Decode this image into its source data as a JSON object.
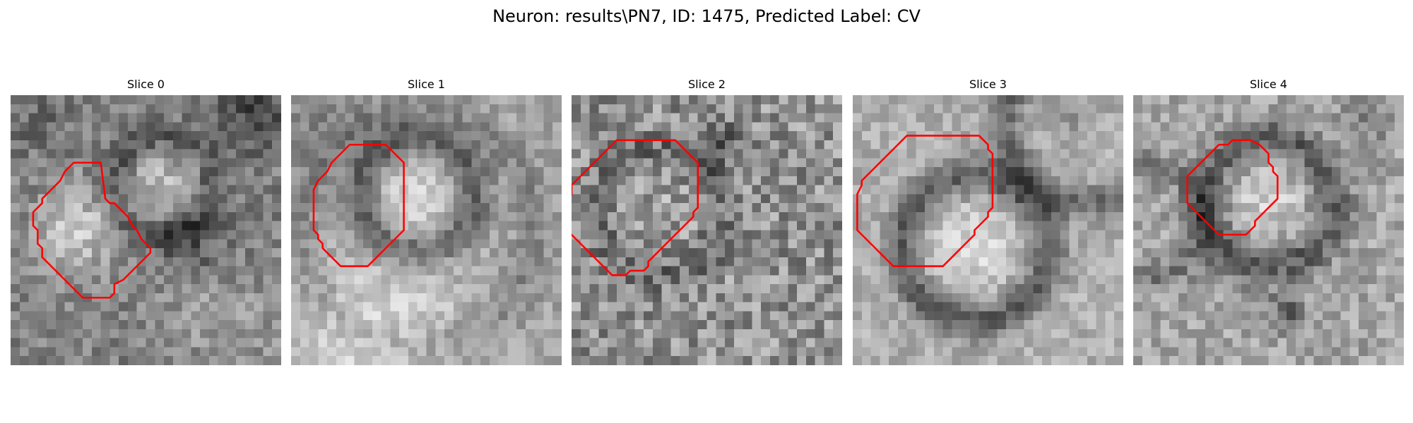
{
  "figure": {
    "title": "Neuron: results\\PN7, ID: 1475, Predicted Label: CV"
  },
  "colors": {
    "contour": "#ff0000",
    "background": "#ffffff"
  },
  "panels": [
    {
      "title": "Slice 0",
      "image": "grayscale-micrograph-patch",
      "contour": [
        [
          10.5,
          11.5
        ],
        [
          11.0,
          12.0
        ],
        [
          11.5,
          12.0
        ],
        [
          12.0,
          12.5
        ],
        [
          12.5,
          13.0
        ],
        [
          13.0,
          13.5
        ],
        [
          13.5,
          14.5
        ],
        [
          14.0,
          15.0
        ],
        [
          14.5,
          16.0
        ],
        [
          15.0,
          16.5
        ],
        [
          15.5,
          17.0
        ],
        [
          15.5,
          17.5
        ],
        [
          15.0,
          18.0
        ],
        [
          14.5,
          18.5
        ],
        [
          14.0,
          19.0
        ],
        [
          13.5,
          19.5
        ],
        [
          13.0,
          20.0
        ],
        [
          12.5,
          20.5
        ],
        [
          11.5,
          21.0
        ],
        [
          11.5,
          22.0
        ],
        [
          11.0,
          22.5
        ],
        [
          8.0,
          22.5
        ],
        [
          7.5,
          22.0
        ],
        [
          7.0,
          21.5
        ],
        [
          6.5,
          21.0
        ],
        [
          6.0,
          20.5
        ],
        [
          5.5,
          20.0
        ],
        [
          5.0,
          19.5
        ],
        [
          4.5,
          19.0
        ],
        [
          4.0,
          18.5
        ],
        [
          3.5,
          18.0
        ],
        [
          3.5,
          17.0
        ],
        [
          3.0,
          16.5
        ],
        [
          3.0,
          15.0
        ],
        [
          2.5,
          14.5
        ],
        [
          2.5,
          13.0
        ],
        [
          3.0,
          12.5
        ],
        [
          3.5,
          12.0
        ],
        [
          3.5,
          11.5
        ],
        [
          4.0,
          11.0
        ],
        [
          4.5,
          10.5
        ],
        [
          5.0,
          10.0
        ],
        [
          5.5,
          9.5
        ],
        [
          6.0,
          8.5
        ],
        [
          6.5,
          8.0
        ],
        [
          7.0,
          7.5
        ],
        [
          10.0,
          7.5
        ]
      ]
    },
    {
      "title": "Slice 1",
      "image": "grayscale-micrograph-patch",
      "contour": [
        [
          10.5,
          5.5
        ],
        [
          11.0,
          6.0
        ],
        [
          11.5,
          6.5
        ],
        [
          12.0,
          7.0
        ],
        [
          12.5,
          7.5
        ],
        [
          12.5,
          10.5
        ],
        [
          12.5,
          15.0
        ],
        [
          12.0,
          15.5
        ],
        [
          11.5,
          16.0
        ],
        [
          11.0,
          16.5
        ],
        [
          10.5,
          17.0
        ],
        [
          10.0,
          17.5
        ],
        [
          9.5,
          18.0
        ],
        [
          9.0,
          18.5
        ],
        [
          8.5,
          19.0
        ],
        [
          5.5,
          19.0
        ],
        [
          5.0,
          18.5
        ],
        [
          4.5,
          18.0
        ],
        [
          4.0,
          17.5
        ],
        [
          3.5,
          17.0
        ],
        [
          3.5,
          16.5
        ],
        [
          3.0,
          16.0
        ],
        [
          3.0,
          15.5
        ],
        [
          2.5,
          15.0
        ],
        [
          2.5,
          10.5
        ],
        [
          3.0,
          9.5
        ],
        [
          3.5,
          9.0
        ],
        [
          4.0,
          8.5
        ],
        [
          4.5,
          7.5
        ],
        [
          5.0,
          7.0
        ],
        [
          5.5,
          6.5
        ],
        [
          6.0,
          6.0
        ],
        [
          6.5,
          5.5
        ]
      ]
    },
    {
      "title": "Slice 2",
      "image": "grayscale-micrograph-patch",
      "contour": [
        [
          11.5,
          5.0
        ],
        [
          12.0,
          5.5
        ],
        [
          12.5,
          6.0
        ],
        [
          13.0,
          6.5
        ],
        [
          13.5,
          7.0
        ],
        [
          14.0,
          7.5
        ],
        [
          14.0,
          11.0
        ],
        [
          14.0,
          12.5
        ],
        [
          13.5,
          13.0
        ],
        [
          13.5,
          13.5
        ],
        [
          13.0,
          14.0
        ],
        [
          12.5,
          14.5
        ],
        [
          12.0,
          15.0
        ],
        [
          11.5,
          15.5
        ],
        [
          11.0,
          16.0
        ],
        [
          10.5,
          16.5
        ],
        [
          10.0,
          17.0
        ],
        [
          9.5,
          17.5
        ],
        [
          9.0,
          18.0
        ],
        [
          8.5,
          18.5
        ],
        [
          8.5,
          19.0
        ],
        [
          8.0,
          19.5
        ],
        [
          6.5,
          19.5
        ],
        [
          6.0,
          20.0
        ],
        [
          4.5,
          20.0
        ],
        [
          4.0,
          19.5
        ],
        [
          3.5,
          19.0
        ],
        [
          3.0,
          18.5
        ],
        [
          2.5,
          18.0
        ],
        [
          2.0,
          17.5
        ],
        [
          1.5,
          17.0
        ],
        [
          1.0,
          16.5
        ],
        [
          0.5,
          16.0
        ],
        [
          0.0,
          15.5
        ],
        [
          -0.5,
          15.0
        ],
        [
          -0.5,
          13.0
        ],
        [
          -0.5,
          12.0
        ],
        [
          0.0,
          11.0
        ],
        [
          0.0,
          10.0
        ],
        [
          0.5,
          9.5
        ],
        [
          1.0,
          9.0
        ],
        [
          1.5,
          8.5
        ],
        [
          2.0,
          8.0
        ],
        [
          2.5,
          7.5
        ],
        [
          3.0,
          7.0
        ],
        [
          3.5,
          6.5
        ],
        [
          4.0,
          6.0
        ],
        [
          4.5,
          5.5
        ],
        [
          5.0,
          5.0
        ]
      ]
    },
    {
      "title": "Slice 3",
      "image": "grayscale-micrograph-patch",
      "contour": [
        [
          14.0,
          4.5
        ],
        [
          14.5,
          5.0
        ],
        [
          15.0,
          5.5
        ],
        [
          15.0,
          6.0
        ],
        [
          15.5,
          6.5
        ],
        [
          15.5,
          8.5
        ],
        [
          15.5,
          11.0
        ],
        [
          15.5,
          12.5
        ],
        [
          15.0,
          13.0
        ],
        [
          15.0,
          13.5
        ],
        [
          14.5,
          14.0
        ],
        [
          14.0,
          14.5
        ],
        [
          13.5,
          15.0
        ],
        [
          13.5,
          15.5
        ],
        [
          13.0,
          16.0
        ],
        [
          12.5,
          16.5
        ],
        [
          12.0,
          17.0
        ],
        [
          11.5,
          17.5
        ],
        [
          11.0,
          18.0
        ],
        [
          10.5,
          18.5
        ],
        [
          10.0,
          19.0
        ],
        [
          4.5,
          19.0
        ],
        [
          4.0,
          18.5
        ],
        [
          3.5,
          18.0
        ],
        [
          3.0,
          17.5
        ],
        [
          2.5,
          17.0
        ],
        [
          2.0,
          16.5
        ],
        [
          1.5,
          16.0
        ],
        [
          1.0,
          15.5
        ],
        [
          0.5,
          15.0
        ],
        [
          0.5,
          13.0
        ],
        [
          0.5,
          11.0
        ],
        [
          1.0,
          10.0
        ],
        [
          1.0,
          9.5
        ],
        [
          1.5,
          9.0
        ],
        [
          2.0,
          8.5
        ],
        [
          2.5,
          8.0
        ],
        [
          3.0,
          7.5
        ],
        [
          3.5,
          7.0
        ],
        [
          4.0,
          6.5
        ],
        [
          4.5,
          6.0
        ],
        [
          5.0,
          5.5
        ],
        [
          5.5,
          5.0
        ],
        [
          6.0,
          4.5
        ],
        [
          8.0,
          4.5
        ]
      ]
    },
    {
      "title": "Slice 4",
      "image": "grayscale-micrograph-patch",
      "contour": [
        [
          14.0,
          5.5
        ],
        [
          14.5,
          6.0
        ],
        [
          15.0,
          6.5
        ],
        [
          15.0,
          7.5
        ],
        [
          15.5,
          8.0
        ],
        [
          15.5,
          8.5
        ],
        [
          16.0,
          9.0
        ],
        [
          16.0,
          11.0
        ],
        [
          16.0,
          11.5
        ],
        [
          15.5,
          12.0
        ],
        [
          15.0,
          12.5
        ],
        [
          14.5,
          13.0
        ],
        [
          14.0,
          13.5
        ],
        [
          13.5,
          14.0
        ],
        [
          13.5,
          14.5
        ],
        [
          13.0,
          15.0
        ],
        [
          12.5,
          15.5
        ],
        [
          9.5,
          15.5
        ],
        [
          9.0,
          15.0
        ],
        [
          8.5,
          14.5
        ],
        [
          8.0,
          14.0
        ],
        [
          7.5,
          13.5
        ],
        [
          7.0,
          13.0
        ],
        [
          6.5,
          12.5
        ],
        [
          6.0,
          12.0
        ],
        [
          6.0,
          10.5
        ],
        [
          6.0,
          9.0
        ],
        [
          6.5,
          8.5
        ],
        [
          7.0,
          8.0
        ],
        [
          7.5,
          7.5
        ],
        [
          8.0,
          7.0
        ],
        [
          8.5,
          6.5
        ],
        [
          9.0,
          6.0
        ],
        [
          9.5,
          5.5
        ],
        [
          10.5,
          5.5
        ],
        [
          11.0,
          5.0
        ],
        [
          13.0,
          5.0
        ]
      ]
    }
  ]
}
